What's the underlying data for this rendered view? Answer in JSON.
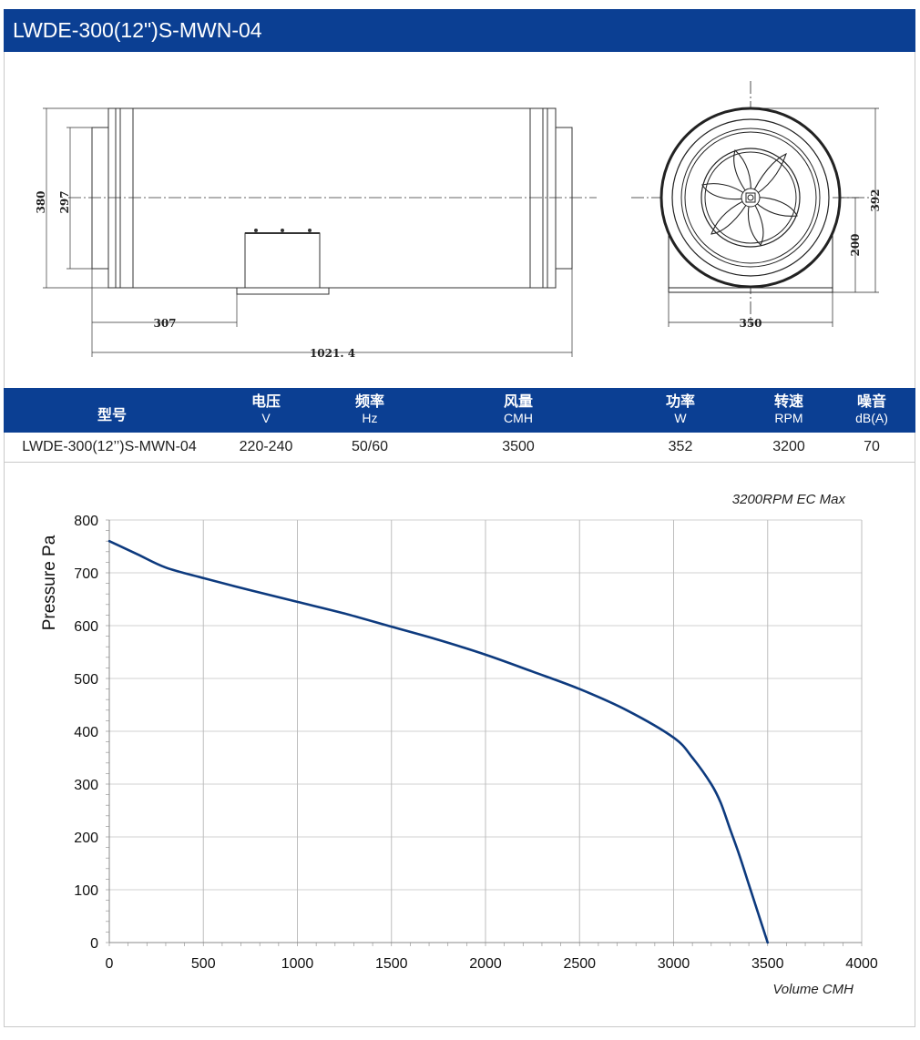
{
  "title": "LWDE-300(12\")S-MWN-04",
  "drawing": {
    "dim_380": "380",
    "dim_297": "297",
    "dim_307": "307",
    "dim_1021": "1021. 4",
    "dim_392": "392",
    "dim_200": "200",
    "dim_350": "350"
  },
  "spec_table": {
    "headers": [
      {
        "label": "型号",
        "unit": ""
      },
      {
        "label": "电压",
        "unit": "V"
      },
      {
        "label": "频率",
        "unit": "Hz"
      },
      {
        "label": "风量",
        "unit": "CMH"
      },
      {
        "label": "功率",
        "unit": "W"
      },
      {
        "label": "转速",
        "unit": "RPM"
      },
      {
        "label": "噪音",
        "unit": "dB(A)"
      }
    ],
    "row": [
      "LWDE-300(12’’)S-MWN-04",
      "220-240",
      "50/60",
      "3500",
      "352",
      "3200",
      "70"
    ]
  },
  "colors": {
    "brand_blue": "#0b3f93",
    "curve": "#0d3a7e"
  },
  "chart_data": {
    "type": "line",
    "annotation": "3200RPM EC Max",
    "xlabel": "Volume CMH",
    "ylabel": "Pressure  Pa",
    "xlim": [
      0,
      4000
    ],
    "ylim": [
      0,
      800
    ],
    "xticks": [
      0,
      500,
      1000,
      1500,
      2000,
      2500,
      3000,
      3500,
      4000
    ],
    "yticks": [
      0,
      100,
      200,
      300,
      400,
      500,
      600,
      700,
      800
    ],
    "grid": true,
    "series": [
      {
        "x": [
          0,
          150,
          300,
          500,
          750,
          1000,
          1250,
          1500,
          1750,
          2000,
          2250,
          2500,
          2750,
          3000,
          3100,
          3200,
          3250,
          3300,
          3350,
          3400,
          3450,
          3500
        ],
        "y": [
          760,
          735,
          710,
          690,
          667,
          645,
          623,
          598,
          573,
          545,
          513,
          480,
          440,
          388,
          350,
          300,
          265,
          215,
          165,
          110,
          55,
          0
        ]
      }
    ]
  }
}
